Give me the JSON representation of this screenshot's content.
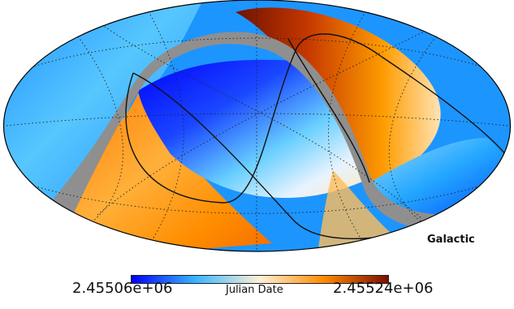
{
  "figure": {
    "coordinate_system": "Galactic",
    "projection": "mollweide",
    "graticule": true
  },
  "colorbar": {
    "label": "Julian Date",
    "min_label": "2.45506e+06",
    "max_label": "2.45524e+06",
    "min": 2455060,
    "max": 2455240,
    "colors": [
      "#0000ff",
      "#39b6ff",
      "#fff1d6",
      "#ff8a00",
      "#7a0f00"
    ]
  },
  "colors": {
    "unobserved": "#8f8f8f",
    "graticule": "#222222",
    "outline": "#000000"
  }
}
